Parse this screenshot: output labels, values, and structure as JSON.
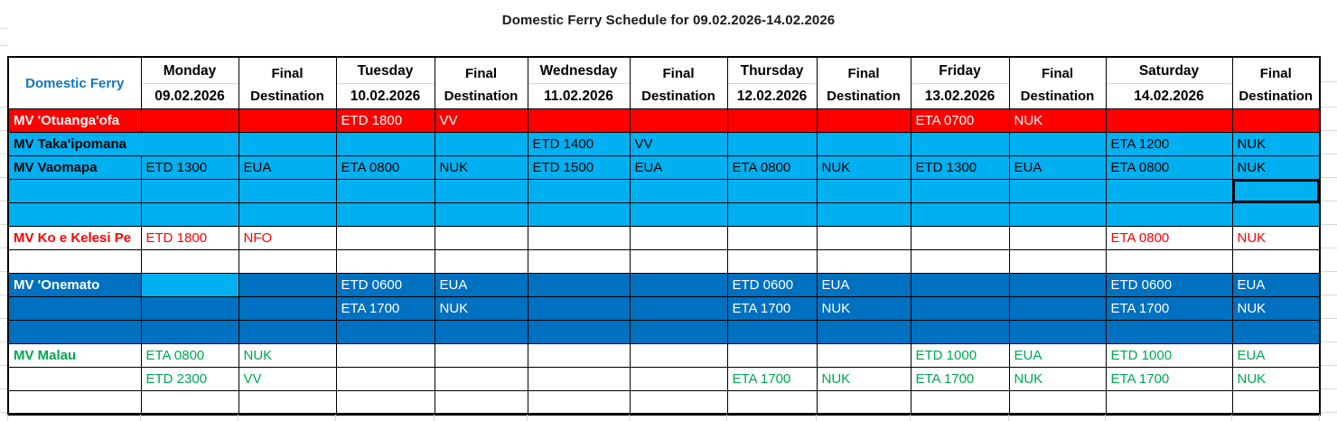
{
  "title": "Domestic Ferry Schedule for 09.02.2026-14.02.2026",
  "colors": {
    "row_red": "#FE0000",
    "row_light_blue": "#00B0F0",
    "row_dark_blue": "#0070C0",
    "text_green": "#00A651",
    "header_label_blue": "#1176BC",
    "grid_black": "#000000"
  },
  "table": {
    "corner_label": "Domestic Ferry",
    "final_label": {
      "line1": "Final",
      "line2": "Destination"
    },
    "days": [
      {
        "day": "Monday",
        "date": "09.02.2026"
      },
      {
        "day": "Tuesday",
        "date": "10.02.2026"
      },
      {
        "day": "Wednesday",
        "date": "11.02.2026"
      },
      {
        "day": "Thursday",
        "date": "12.02.2026"
      },
      {
        "day": "Friday",
        "date": "13.02.2026"
      },
      {
        "day": "Saturday",
        "date": "14.02.2026"
      }
    ],
    "rows": [
      {
        "name": "MV 'Otuanga'ofa",
        "style": "red",
        "cells": [
          "",
          "",
          "ETD 1800",
          "VV",
          "",
          "",
          "",
          "",
          "ETA 0700",
          "NUK",
          "",
          ""
        ]
      },
      {
        "name": "MV Taka'ipomana",
        "style": "lightblue",
        "name_colspan": 2,
        "cells": [
          "",
          "",
          "",
          "",
          "ETD 1400",
          "VV",
          "",
          "",
          "",
          "",
          "ETA 1200",
          "NUK"
        ]
      },
      {
        "name": "MV Vaomapa",
        "style": "lightblue",
        "cells": [
          "ETD 1300",
          "EUA",
          "ETA 0800",
          "NUK",
          "ETD 1500",
          "EUA",
          "ETA 0800",
          "NUK",
          "ETD 1300",
          "EUA",
          "ETA 0800",
          "NUK"
        ]
      },
      {
        "name": "",
        "style": "lightblue",
        "selected_cell": 11,
        "cells": [
          "",
          "",
          "",
          "",
          "",
          "",
          "",
          "",
          "",
          "",
          "",
          ""
        ]
      },
      {
        "name": "",
        "style": "lightblue",
        "cells": [
          "",
          "",
          "",
          "",
          "",
          "",
          "",
          "",
          "",
          "",
          "",
          ""
        ]
      },
      {
        "name": "MV Ko e Kelesi Pe",
        "style": "kelesi",
        "cells": [
          "ETD 1800",
          "NFO",
          "",
          "",
          "",
          "",
          "",
          "",
          "",
          "",
          "ETA 0800",
          "NUK"
        ]
      },
      {
        "name": "",
        "style": "white",
        "cells": [
          "",
          "",
          "",
          "",
          "",
          "",
          "",
          "",
          "",
          "",
          "",
          ""
        ]
      },
      {
        "name": "MV 'Onemato",
        "style": "darkblue",
        "cell_classes": {
          "0": "cell-lightblue"
        },
        "cells": [
          "",
          "",
          "ETD 0600",
          "EUA",
          "",
          "",
          "ETD 0600",
          "EUA",
          "",
          "",
          "ETD 0600",
          "EUA"
        ]
      },
      {
        "name": "",
        "style": "darkblue",
        "cells": [
          "",
          "",
          "ETA 1700",
          "NUK",
          "",
          "",
          "ETA 1700",
          "NUK",
          "",
          "",
          "ETA 1700",
          "NUK"
        ]
      },
      {
        "name": "",
        "style": "darkblue",
        "cells": [
          "",
          "",
          "",
          "",
          "",
          "",
          "",
          "",
          "",
          "",
          "",
          ""
        ]
      },
      {
        "name": "MV Malau",
        "style": "malau",
        "cells": [
          "ETA 0800",
          "NUK",
          "",
          "",
          "",
          "",
          "",
          "",
          "ETD 1000",
          "EUA",
          "ETD 1000",
          "EUA"
        ]
      },
      {
        "name": "",
        "style": "malau",
        "cells": [
          "ETD 2300",
          "VV",
          "",
          "",
          "",
          "",
          "ETA 1700",
          "NUK",
          "ETA 1700",
          "NUK",
          "ETA 1700",
          "NUK"
        ]
      },
      {
        "name": "",
        "style": "white",
        "cells": [
          "",
          "",
          "",
          "",
          "",
          "",
          "",
          "",
          "",
          "",
          "",
          ""
        ]
      }
    ]
  }
}
